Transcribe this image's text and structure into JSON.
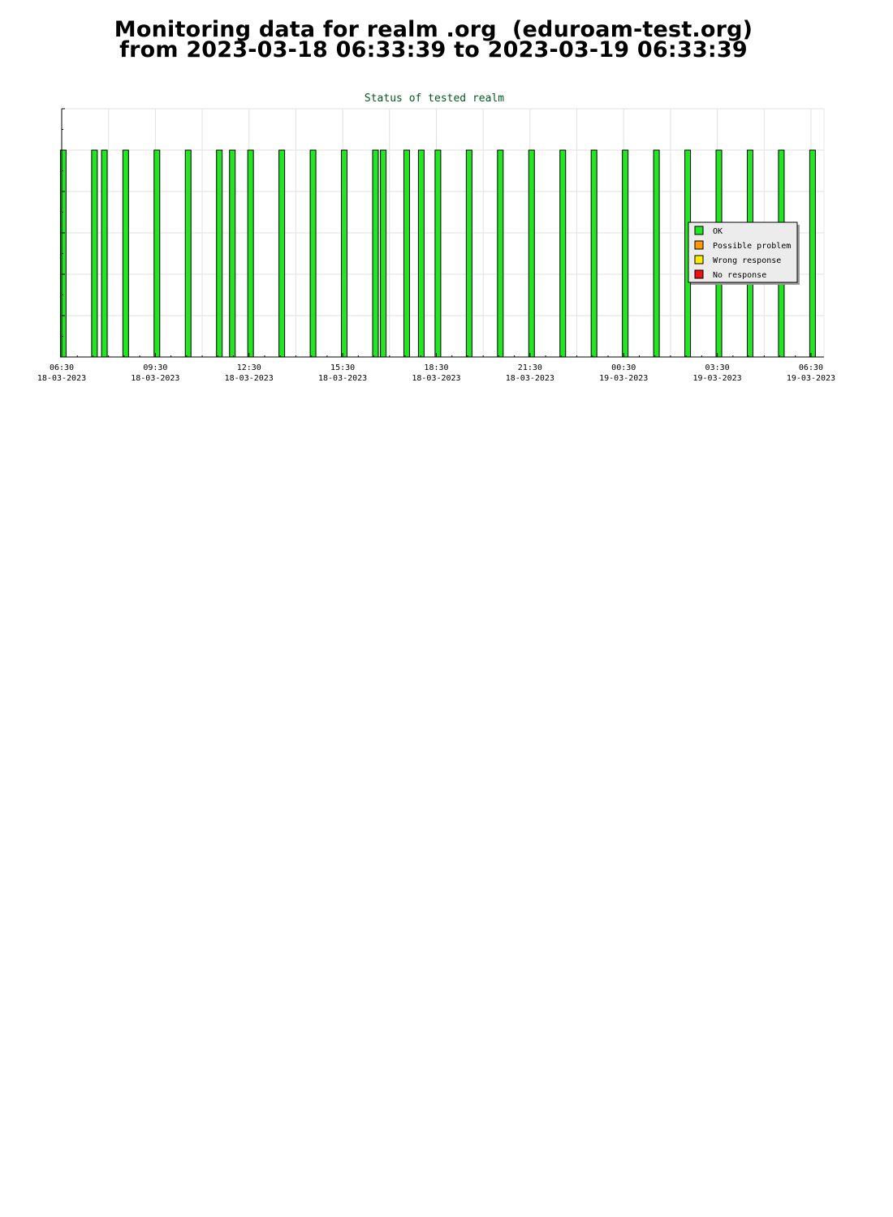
{
  "header": {
    "line1": "Monitoring data for realm .org  (eduroam-test.org)",
    "line2": "from 2023-03-18 06:33:39 to 2023-03-19 06:33:39"
  },
  "chart_data": {
    "type": "bar",
    "title": "Status of tested realm",
    "xlabel": "",
    "ylabel": "",
    "x_range": [
      "2023-03-18 06:30",
      "2023-03-19 06:55"
    ],
    "ylim": [
      0,
      6
    ],
    "grid": true,
    "legend_position": "right",
    "x_ticks": [
      {
        "time": "06:30",
        "date": "18-03-2023"
      },
      {
        "time": "09:30",
        "date": "18-03-2023"
      },
      {
        "time": "12:30",
        "date": "18-03-2023"
      },
      {
        "time": "15:30",
        "date": "18-03-2023"
      },
      {
        "time": "18:30",
        "date": "18-03-2023"
      },
      {
        "time": "21:30",
        "date": "18-03-2023"
      },
      {
        "time": "00:30",
        "date": "19-03-2023"
      },
      {
        "time": "03:30",
        "date": "19-03-2023"
      },
      {
        "time": "06:30",
        "date": "19-03-2023"
      }
    ],
    "legend": [
      {
        "label": "OK",
        "color": "#22e622"
      },
      {
        "label": "Possible problem",
        "color": "#ff9900"
      },
      {
        "label": "Wrong response",
        "color": "#ffee00"
      },
      {
        "label": "No response",
        "color": "#ee1111"
      }
    ],
    "series": [
      {
        "status": "OK",
        "color": "#22e622",
        "value": 5,
        "times": [
          "2023-03-18 06:33",
          "2023-03-18 07:33",
          "2023-03-18 07:52",
          "2023-03-18 08:33",
          "2023-03-18 09:33",
          "2023-03-18 10:33",
          "2023-03-18 11:33",
          "2023-03-18 11:58",
          "2023-03-18 12:33",
          "2023-03-18 13:33",
          "2023-03-18 14:33",
          "2023-03-18 15:33",
          "2023-03-18 16:33",
          "2023-03-18 16:48",
          "2023-03-18 17:33",
          "2023-03-18 18:01",
          "2023-03-18 18:33",
          "2023-03-18 19:33",
          "2023-03-18 20:33",
          "2023-03-18 21:33",
          "2023-03-18 22:33",
          "2023-03-18 23:33",
          "2023-03-19 00:33",
          "2023-03-19 01:33",
          "2023-03-19 02:33",
          "2023-03-19 03:33",
          "2023-03-19 04:33",
          "2023-03-19 05:33",
          "2023-03-19 06:33"
        ]
      }
    ]
  }
}
